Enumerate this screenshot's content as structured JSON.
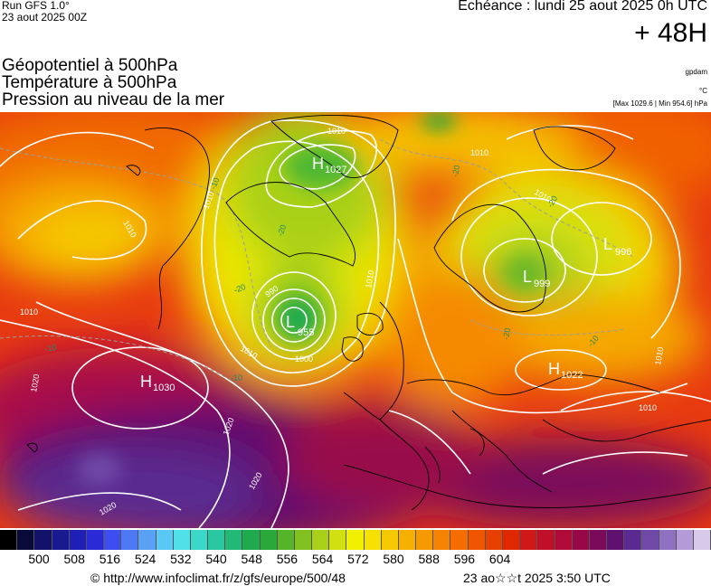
{
  "header": {
    "run": "Run GFS 1.0°",
    "run_date": "23 aout 2025 00Z",
    "echeance": "Echéance : lundi 25 aout 2025 0h UTC",
    "lead": "+ 48H"
  },
  "titles": {
    "line1": "Géopotentiel à 500hPa",
    "line2": "Température à 500hPa",
    "line3": "Pression au niveau de la mer"
  },
  "units": {
    "gpdam": "gpdam",
    "temp": "°C",
    "pressure_range": "[Max 1029.6 | Min 954.6] hPa"
  },
  "map": {
    "pressure_centers": [
      {
        "type": "H",
        "value": "1027"
      },
      {
        "type": "L",
        "value": "955"
      },
      {
        "type": "H",
        "value": "1030"
      },
      {
        "type": "L",
        "value": "996"
      },
      {
        "type": "L",
        "value": "999"
      },
      {
        "type": "H",
        "value": "1022"
      }
    ],
    "isobar_labels": [
      "1010",
      "1010",
      "1010",
      "1000",
      "990",
      "1020",
      "1020",
      "1020",
      "1020",
      "1010",
      "1010",
      "1010",
      "1010",
      "1010",
      "1010",
      "1010"
    ],
    "isotherm_labels": [
      "-20",
      "-20",
      "-20",
      "-10",
      "-10",
      "-20",
      "-20",
      "-10",
      "-10"
    ]
  },
  "legend": {
    "colors": [
      "#000000",
      "#0a0a3a",
      "#12126a",
      "#1a1a90",
      "#1f1fb8",
      "#2a2ad6",
      "#3d4ef0",
      "#4f78f5",
      "#5aa0f5",
      "#5ac8f5",
      "#4fe0e8",
      "#3ad8c8",
      "#2ac8a0",
      "#22b878",
      "#1faa50",
      "#2aa83a",
      "#55b428",
      "#80c020",
      "#a8d018",
      "#d0e010",
      "#f0f000",
      "#f5e000",
      "#f5c800",
      "#f5b000",
      "#f59a00",
      "#f58200",
      "#f56c00",
      "#f05500",
      "#e84000",
      "#e02800",
      "#d01818",
      "#c01028",
      "#b00a38",
      "#980848",
      "#7c0a5a",
      "#601070",
      "#5a2a90",
      "#7048a8",
      "#9070c0",
      "#b49ad6",
      "#d8c8ea"
    ],
    "ticks": [
      "500",
      "508",
      "516",
      "524",
      "532",
      "540",
      "548",
      "556",
      "564",
      "572",
      "580",
      "588",
      "596",
      "604"
    ]
  },
  "footer": {
    "url": "© http://www.infoclimat.fr/z/gfs/europe/500/48",
    "date": "23 ao☆☆t 2025  3:50 UTC"
  }
}
